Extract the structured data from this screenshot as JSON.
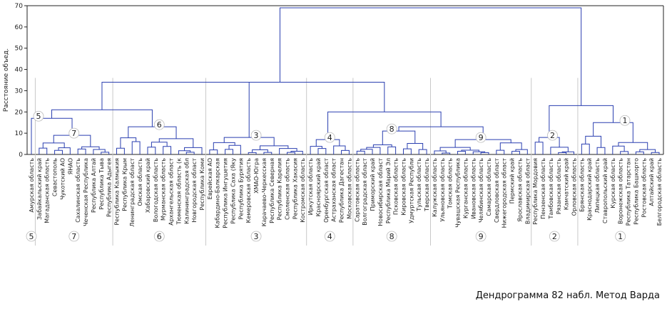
{
  "chart_data": {
    "type": "dendrogram",
    "title": "",
    "ylabel": "Расстояние объед.",
    "ylim": [
      0,
      70
    ],
    "yticks": [
      0,
      10,
      20,
      30,
      40,
      50,
      60,
      70
    ],
    "grid": false,
    "leaves": [
      "Амурская область",
      "Забайкальский край",
      "Магаданская область",
      "Севастополь",
      "Чукотский АО",
      "ЯНАО",
      "Сахалинская область",
      "Чеченская Республика",
      "Республика Алтай",
      "Республика Тыва",
      "Республика Адыгея",
      "Республика Калмыкия",
      "Республика Крым",
      "Ленинградская област",
      "Омская область",
      "Хабаровский край",
      "Вологодская область",
      "Мурманская область",
      "Архангельская област",
      "Тюменская область (к",
      "Калининградская обл",
      "Новгородская област",
      "Республика Коми",
      "Еврейская АО",
      "Кабардино-Балкарская",
      "Республика Ингушетия",
      "Республика Саха (Яку",
      "Республика Бурятия",
      "Кемеровская область",
      "ХМАО-Югра",
      "Карачаево-Черкесская",
      "Республика Северная",
      "Республика Карелия",
      "Смоленская область",
      "Республика Хакасия",
      "Костромская область",
      "Иркутская область",
      "Красноярский край",
      "Оренбургская област",
      "Астраханская област",
      "Республика Дагестан",
      "Московская область",
      "Саратовская область",
      "Волгоградская област",
      "Приморский край",
      "Новосибирская област",
      "Республика Марий Эл",
      "Псковская область",
      "Кировская область",
      "Удмуртская Республи",
      "Тульская область",
      "Тверская область",
      "Калужская область",
      "Ульяновская область",
      "Томская область",
      "Чувашская Республика",
      "Курганская область",
      "Ивановская область",
      "Челябинская область",
      "Самарская область",
      "Свердловская област",
      "Нижегородская област",
      "Пермский край",
      "Ярославская область",
      "Владимирская област",
      "Республика Мордовия",
      "Пензенская область",
      "Тамбовская область",
      "Рязанская область",
      "Камчатский край",
      "Орловская область",
      "Брянская область",
      "Краснодарский край",
      "Липецкая область",
      "Ставропольский край",
      "Курская область",
      "Воронежская область",
      "Республика Татарстан",
      "Республика Башкорто",
      "Ростовская область",
      "Алтайский край",
      "Белгородская область"
    ],
    "clusters": [
      {
        "label": "5",
        "first": 0,
        "last": 0,
        "height": 17
      },
      {
        "label": "7",
        "first": 1,
        "last": 10,
        "height": 9
      },
      {
        "label": "6",
        "first": 11,
        "last": 22,
        "height": 13
      },
      {
        "label": "3",
        "first": 23,
        "last": 35,
        "height": 8
      },
      {
        "label": "4",
        "first": 36,
        "last": 41,
        "height": 7
      },
      {
        "label": "8",
        "first": 42,
        "last": 51,
        "height": 11
      },
      {
        "label": "9",
        "first": 52,
        "last": 64,
        "height": 7
      },
      {
        "label": "2",
        "first": 65,
        "last": 70,
        "height": 8
      },
      {
        "label": "1",
        "first": 71,
        "last": 81,
        "height": 15
      }
    ],
    "merges": [
      {
        "left": "5",
        "right": "7",
        "height": 17
      },
      {
        "left": "5+7",
        "right": "6",
        "height": 21
      },
      {
        "left": "5+7+6",
        "right": "3",
        "height": 34
      },
      {
        "left": "8",
        "right": "9",
        "height": 13
      },
      {
        "left": "4",
        "right": "8+9",
        "height": 20
      },
      {
        "left": "5+7+6+3",
        "right": "4+8+9",
        "height": 34
      },
      {
        "left": "2",
        "right": "1",
        "height": 23
      },
      {
        "left": "5+7+6+3+4+8+9",
        "right": "2+1",
        "height": 69
      }
    ]
  },
  "caption": "Дендрограмма 82 набл. Метод Варда",
  "colors": {
    "lines": "#2a3fb0",
    "dividers": "#c8c8c8"
  }
}
